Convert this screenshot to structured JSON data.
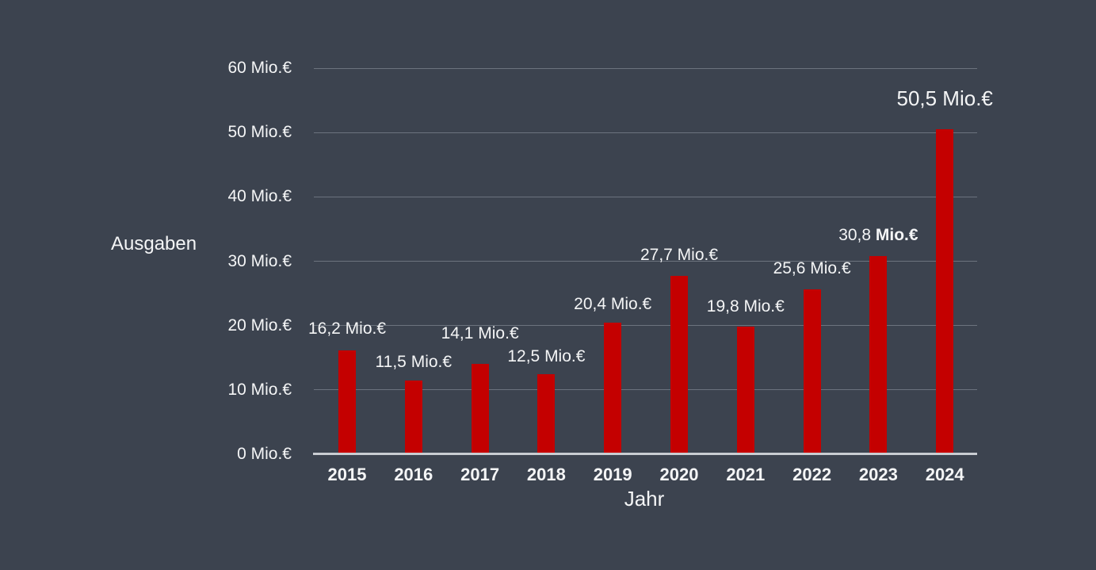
{
  "colors": {
    "background": "#3c434f",
    "text": "#f4f5f6",
    "bar": "#c40000",
    "gridline": "rgba(198,205,215,0.35)",
    "axis_line": "#c9cdd2"
  },
  "chart_data": {
    "type": "bar",
    "title": "",
    "xlabel": "Jahr",
    "ylabel": "Ausgaben",
    "unit": "Mio.€",
    "ylim": [
      0,
      60
    ],
    "ytick_step": 10,
    "ytick_labels": [
      "0 Mio.€",
      "10 Mio.€",
      "20 Mio.€",
      "30 Mio.€",
      "40 Mio.€",
      "50 Mio.€",
      "60 Mio.€"
    ],
    "grid": true,
    "legend": "none",
    "categories": [
      "2015",
      "2016",
      "2017",
      "2018",
      "2019",
      "2020",
      "2021",
      "2022",
      "2023",
      "2024"
    ],
    "values": [
      16.2,
      11.5,
      14.1,
      12.5,
      20.4,
      27.7,
      19.8,
      25.6,
      30.8,
      50.5
    ],
    "bars": [
      {
        "year": "2015",
        "value": 16.2,
        "label": "16,2 Mio.€",
        "label_gap": 14
      },
      {
        "year": "2016",
        "value": 11.5,
        "label": "11,5 Mio.€",
        "label_gap": 10
      },
      {
        "year": "2017",
        "value": 14.1,
        "label": "14,1 Mio.€",
        "label_gap": 25
      },
      {
        "year": "2018",
        "value": 12.5,
        "label": "12,5 Mio.€",
        "label_gap": 9
      },
      {
        "year": "2019",
        "value": 20.4,
        "label": "20,4 Mio.€",
        "label_gap": 10
      },
      {
        "year": "2020",
        "value": 27.7,
        "label": "27,7 Mio.€",
        "label_gap": 13
      },
      {
        "year": "2021",
        "value": 19.8,
        "label": "19,8 Mio.€",
        "label_gap": 12
      },
      {
        "year": "2022",
        "value": 25.6,
        "label": "25,6 Mio.€",
        "label_gap": 13
      },
      {
        "year": "2023",
        "value": 30.8,
        "label": "30,8 Mio.€",
        "label_gap": 13,
        "label_parts": [
          {
            "text": "30,8 ",
            "bold": false
          },
          {
            "text": "Mio.€",
            "bold": true
          }
        ]
      },
      {
        "year": "2024",
        "value": 50.5,
        "label": "50,5 Mio.€",
        "label_gap": 24,
        "label_large": true
      }
    ]
  }
}
